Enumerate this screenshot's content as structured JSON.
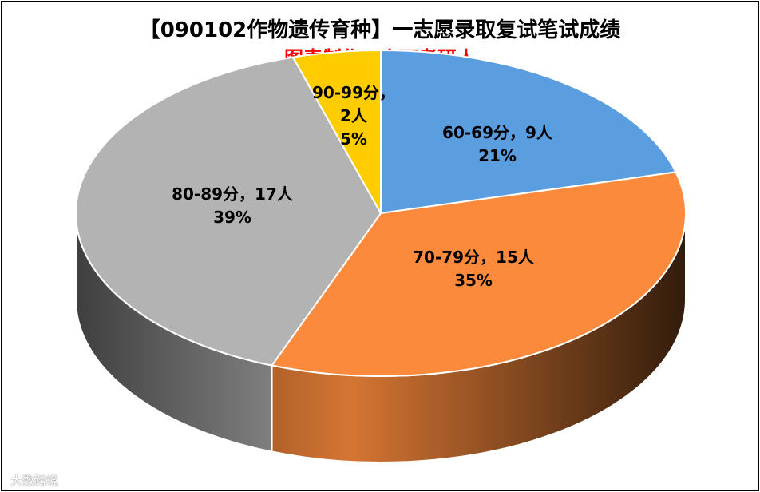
{
  "title": "【090102作物遗传育种】一志愿录取复试笔试成绩",
  "subtitle": "图表制作：小西考研人",
  "watermark": "大数跨境",
  "chart_data": {
    "type": "pie",
    "style": "3d",
    "categories": [
      "60-69分",
      "70-79分",
      "80-89分",
      "90-99分"
    ],
    "values": [
      9,
      15,
      17,
      2
    ],
    "unit": "人",
    "percents": [
      "21%",
      "35%",
      "39%",
      "5%"
    ],
    "labels": [
      [
        "60-69分，9人",
        "21%"
      ],
      [
        "70-79分，15人",
        "35%"
      ],
      [
        "80-89分，17人",
        "39%"
      ],
      [
        "90-99分，",
        "2人",
        "5%"
      ]
    ],
    "colors": [
      "#5b9ee0",
      "#fb8a3c",
      "#b3b3b3",
      "#ffcc00"
    ],
    "legend": "none",
    "grid": false
  }
}
